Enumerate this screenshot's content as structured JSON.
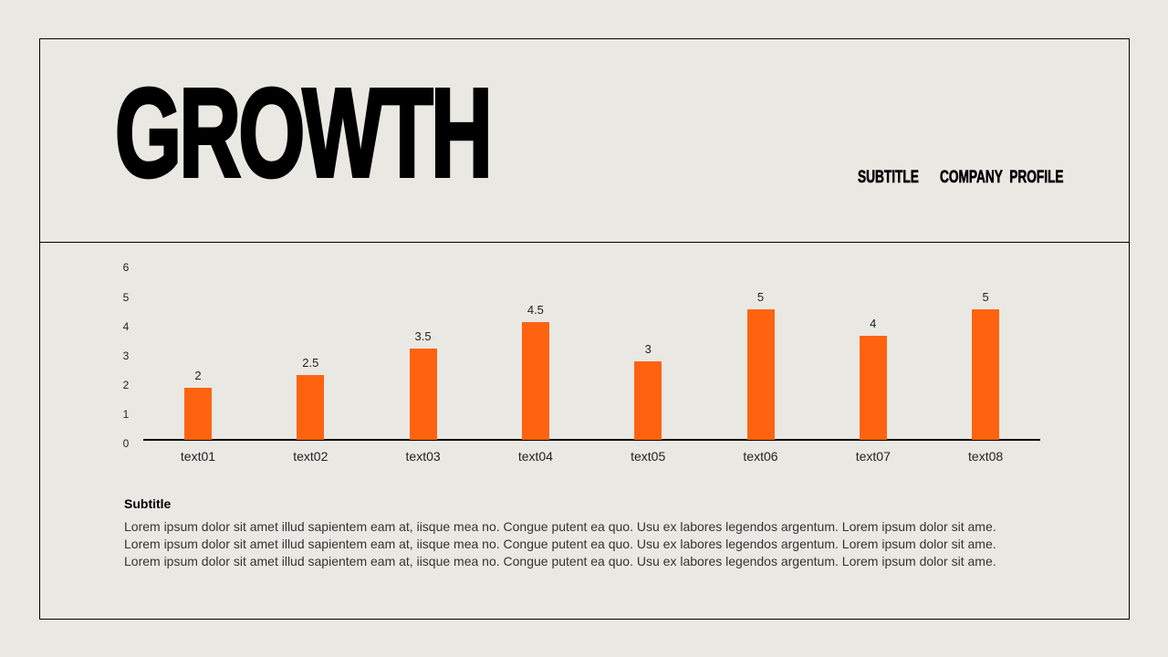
{
  "slide": {
    "title": "GROWTH",
    "subtitle_label": "SUBTITLE",
    "company_label": "COMPANY  PROFILE"
  },
  "colors": {
    "background": "#eae8e3",
    "bar": "#ff6310",
    "text": "#000000"
  },
  "body": {
    "subtitle": "Subtitle",
    "lines": [
      "Lorem ipsum dolor sit amet illud sapientem eam at, iisque mea no. Congue putent ea quo. Usu ex labores legendos argentum. Lorem ipsum dolor sit ame.",
      "Lorem ipsum dolor sit amet illud sapientem eam at, iisque mea no. Congue putent ea quo. Usu ex labores legendos argentum. Lorem ipsum dolor sit ame.",
      "Lorem ipsum dolor sit amet illud sapientem eam at, iisque mea no. Congue putent ea quo. Usu ex labores legendos argentum. Lorem ipsum dolor sit ame."
    ]
  },
  "chart_data": {
    "type": "bar",
    "title": "",
    "xlabel": "",
    "ylabel": "",
    "categories": [
      "text01",
      "text02",
      "text03",
      "text04",
      "text05",
      "text06",
      "text07",
      "text08"
    ],
    "values": [
      2,
      2.5,
      3.5,
      4.5,
      3,
      5,
      4,
      5
    ],
    "data_labels": [
      "2",
      "2.5",
      "3.5",
      "4.5",
      "3",
      "5",
      "4",
      "5"
    ],
    "yticks": [
      "0",
      "1",
      "2",
      "3",
      "4",
      "5",
      "6"
    ],
    "ylim": [
      0,
      6
    ],
    "grid": false,
    "legend": "none",
    "bar_color": "#ff6310"
  }
}
